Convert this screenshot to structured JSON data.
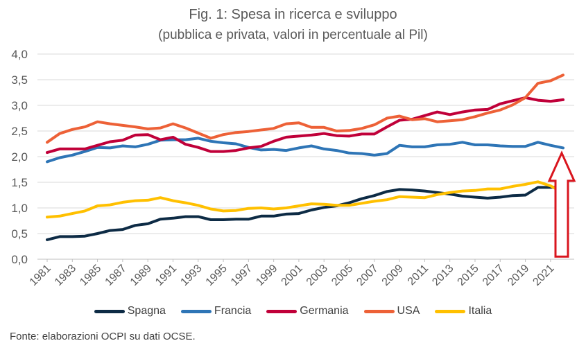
{
  "chart_data": {
    "type": "line",
    "title": "Fig. 1: Spesa in ricerca e sviluppo",
    "subtitle": "(pubblica e privata, valori in percentuale al Pil)",
    "xlabel": "",
    "ylabel": "",
    "ylim": [
      0,
      4
    ],
    "yticks": [
      "0,0",
      "0,5",
      "1,0",
      "1,5",
      "2,0",
      "2,5",
      "3,0",
      "3,5",
      "4,0"
    ],
    "xticks": [
      "1981",
      "1983",
      "1985",
      "1987",
      "1989",
      "1991",
      "1993",
      "1995",
      "1997",
      "1999",
      "2001",
      "2003",
      "2005",
      "2007",
      "2009",
      "2011",
      "2013",
      "2015",
      "2017",
      "2019",
      "2021"
    ],
    "x": [
      1981,
      1982,
      1983,
      1984,
      1985,
      1986,
      1987,
      1988,
      1989,
      1990,
      1991,
      1992,
      1993,
      1994,
      1995,
      1996,
      1997,
      1998,
      1999,
      2000,
      2001,
      2002,
      2003,
      2004,
      2005,
      2006,
      2007,
      2008,
      2009,
      2010,
      2011,
      2012,
      2013,
      2014,
      2015,
      2016,
      2017,
      2018,
      2019,
      2020,
      2021,
      2022
    ],
    "grid": true,
    "legend_position": "bottom",
    "series": [
      {
        "name": "Spagna",
        "color": "#0d2b45",
        "values": [
          0.38,
          0.44,
          0.44,
          0.45,
          0.5,
          0.56,
          0.58,
          0.66,
          0.69,
          0.78,
          0.8,
          0.83,
          0.83,
          0.77,
          0.77,
          0.78,
          0.78,
          0.84,
          0.84,
          0.88,
          0.89,
          0.96,
          1.01,
          1.04,
          1.1,
          1.18,
          1.24,
          1.32,
          1.36,
          1.35,
          1.33,
          1.3,
          1.27,
          1.23,
          1.21,
          1.19,
          1.21,
          1.24,
          1.25,
          1.4,
          1.4,
          1.41
        ]
      },
      {
        "name": "Francia",
        "color": "#2e75b6",
        "values": [
          1.9,
          1.98,
          2.03,
          2.1,
          2.18,
          2.17,
          2.21,
          2.19,
          2.24,
          2.32,
          2.33,
          2.33,
          2.36,
          2.3,
          2.27,
          2.25,
          2.18,
          2.13,
          2.14,
          2.12,
          2.17,
          2.21,
          2.15,
          2.12,
          2.07,
          2.06,
          2.03,
          2.06,
          2.22,
          2.19,
          2.19,
          2.23,
          2.24,
          2.28,
          2.23,
          2.23,
          2.21,
          2.2,
          2.2,
          2.28,
          2.22,
          2.17
        ]
      },
      {
        "name": "Germania",
        "color": "#c00039",
        "values": [
          2.08,
          2.15,
          2.15,
          2.15,
          2.22,
          2.29,
          2.32,
          2.42,
          2.43,
          2.33,
          2.38,
          2.24,
          2.18,
          2.1,
          2.1,
          2.12,
          2.17,
          2.2,
          2.3,
          2.38,
          2.4,
          2.42,
          2.45,
          2.41,
          2.4,
          2.44,
          2.44,
          2.58,
          2.71,
          2.73,
          2.8,
          2.87,
          2.82,
          2.87,
          2.91,
          2.92,
          3.03,
          3.09,
          3.15,
          3.1,
          3.08,
          3.11
        ]
      },
      {
        "name": "USA",
        "color": "#ed6137",
        "values": [
          2.28,
          2.45,
          2.53,
          2.58,
          2.68,
          2.64,
          2.61,
          2.58,
          2.54,
          2.56,
          2.64,
          2.56,
          2.46,
          2.36,
          2.43,
          2.47,
          2.49,
          2.52,
          2.55,
          2.64,
          2.66,
          2.57,
          2.57,
          2.5,
          2.51,
          2.55,
          2.62,
          2.75,
          2.79,
          2.72,
          2.74,
          2.68,
          2.7,
          2.72,
          2.78,
          2.85,
          2.91,
          3.01,
          3.15,
          3.43,
          3.48,
          3.59
        ]
      },
      {
        "name": "Italia",
        "color": "#ffc000",
        "values": [
          0.82,
          0.84,
          0.89,
          0.94,
          1.04,
          1.06,
          1.11,
          1.14,
          1.15,
          1.2,
          1.14,
          1.1,
          1.05,
          0.98,
          0.94,
          0.95,
          0.99,
          1.0,
          0.98,
          1.0,
          1.04,
          1.08,
          1.07,
          1.05,
          1.05,
          1.09,
          1.13,
          1.16,
          1.22,
          1.21,
          1.2,
          1.26,
          1.3,
          1.33,
          1.34,
          1.37,
          1.37,
          1.42,
          1.46,
          1.51,
          1.43,
          1.3
        ]
      }
    ],
    "annotation": {
      "type": "arrow-outline",
      "color": "#d9151e",
      "direction": "up",
      "at_x": 2022
    }
  },
  "footnote": "Fonte: elaborazioni OCPI su dati OCSE."
}
